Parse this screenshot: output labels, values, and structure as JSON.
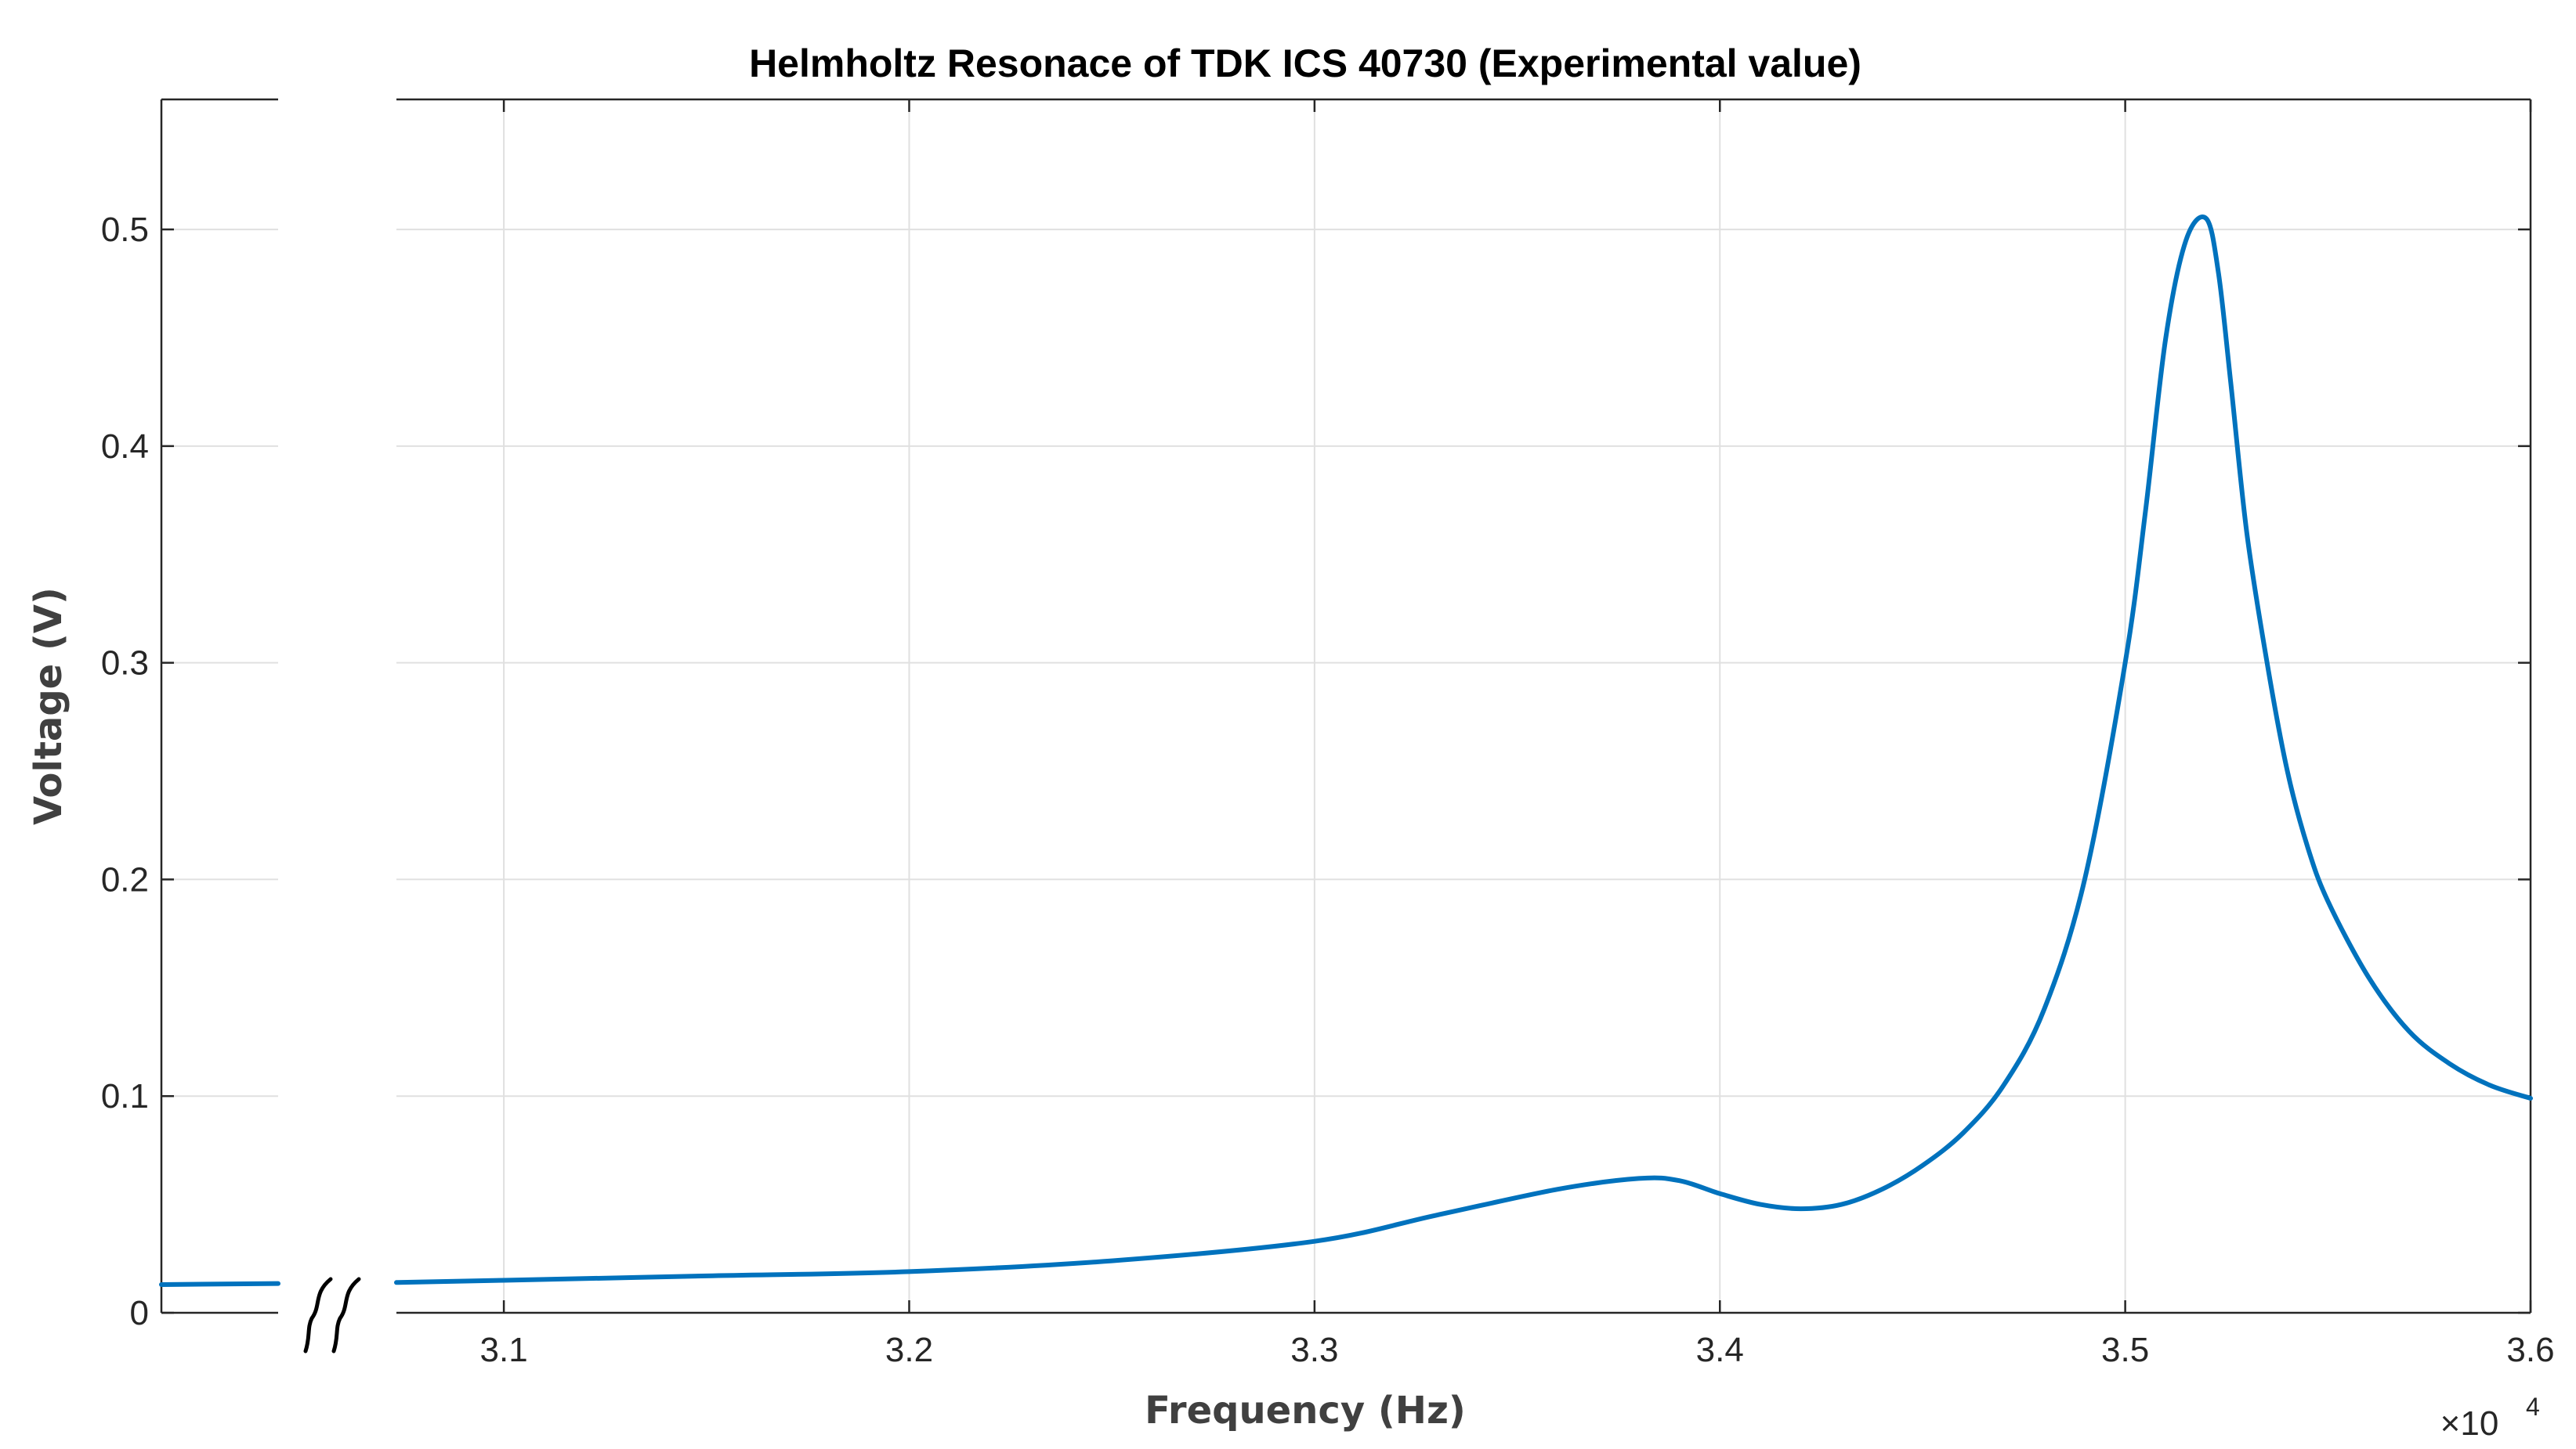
{
  "chart_data": {
    "type": "line",
    "title": "Helmholtz Resonace of TDK ICS 40730  (Experimental value)",
    "xlabel": "Frequency (Hz)",
    "ylabel": "Voltage (V)",
    "x_multiplier_label": "×10",
    "x_multiplier_exponent": "4",
    "xlim": [
      30735,
      36000
    ],
    "ylim": [
      0,
      0.56
    ],
    "x_ticks": [
      31000,
      32000,
      33000,
      34000,
      35000,
      36000
    ],
    "x_tick_labels": [
      "3.1",
      "3.2",
      "3.3",
      "3.4",
      "3.5",
      "3.6"
    ],
    "y_ticks": [
      0,
      0.1,
      0.2,
      0.3,
      0.4,
      0.5
    ],
    "y_tick_labels": [
      "0",
      "0.1",
      "0.2",
      "0.3",
      "0.4",
      "0.5"
    ],
    "grid": true,
    "axis_break": true,
    "colors": {
      "series": "#0072BD"
    },
    "series_before_break": {
      "y": [
        0.013,
        0.0135
      ]
    },
    "series": [
      {
        "x": [
          30735,
          31000,
          31500,
          32000,
          32500,
          33000,
          33300,
          33600,
          33800,
          33900,
          34000,
          34100,
          34200,
          34300,
          34400,
          34500,
          34600,
          34700,
          34800,
          34900,
          35000,
          35050,
          35100,
          35150,
          35200,
          35230,
          35260,
          35300,
          35350,
          35400,
          35450,
          35500,
          35600,
          35700,
          35800,
          35900,
          36000
        ],
        "y": [
          0.014,
          0.015,
          0.017,
          0.019,
          0.024,
          0.033,
          0.045,
          0.057,
          0.062,
          0.061,
          0.055,
          0.05,
          0.048,
          0.05,
          0.057,
          0.068,
          0.083,
          0.105,
          0.14,
          0.2,
          0.3,
          0.37,
          0.45,
          0.495,
          0.505,
          0.48,
          0.43,
          0.36,
          0.3,
          0.25,
          0.215,
          0.19,
          0.155,
          0.13,
          0.115,
          0.105,
          0.099
        ]
      }
    ]
  }
}
